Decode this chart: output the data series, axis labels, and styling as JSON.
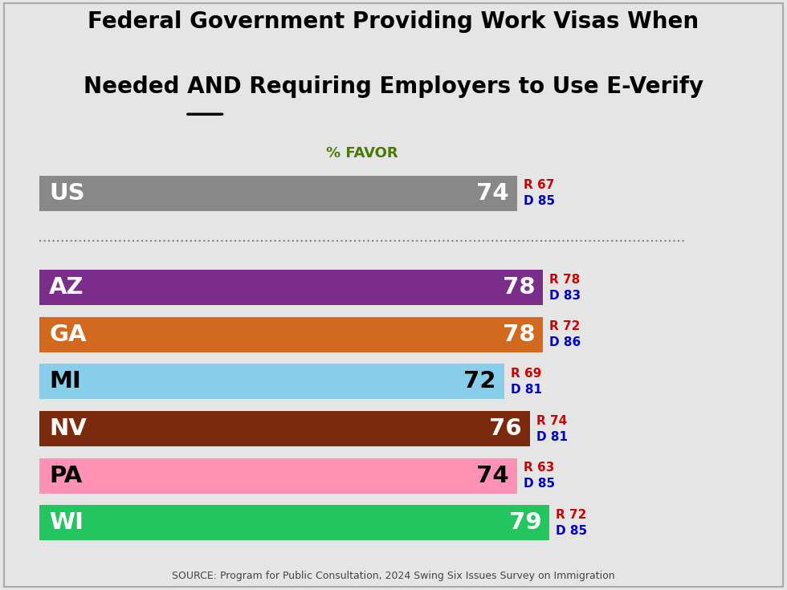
{
  "title_line1": "Federal Government Providing Work Visas When",
  "title_line2_pre": "Needed ",
  "title_line2_underline": "AND",
  "title_line2_post": " Requiring Employers to Use E-Verify",
  "favor_label": "% FAVOR",
  "source": "SOURCE: Program for Public Consultation, 2024 Swing Six Issues Survey on Immigration",
  "background_color": "#e5e5e5",
  "bars": [
    {
      "label": "US",
      "value": 74,
      "color": "#888888",
      "R": 67,
      "D": 85,
      "label_color": "#ffffff",
      "value_color": "#ffffff"
    },
    {
      "label": "AZ",
      "value": 78,
      "color": "#7B2D8B",
      "R": 78,
      "D": 83,
      "label_color": "#ffffff",
      "value_color": "#ffffff"
    },
    {
      "label": "GA",
      "value": 78,
      "color": "#D2691E",
      "R": 72,
      "D": 86,
      "label_color": "#ffffff",
      "value_color": "#ffffff"
    },
    {
      "label": "MI",
      "value": 72,
      "color": "#87CEEB",
      "R": 69,
      "D": 81,
      "label_color": "#000000",
      "value_color": "#000000"
    },
    {
      "label": "NV",
      "value": 76,
      "color": "#7B2A0E",
      "R": 74,
      "D": 81,
      "label_color": "#ffffff",
      "value_color": "#ffffff"
    },
    {
      "label": "PA",
      "value": 74,
      "color": "#FF91B4",
      "R": 63,
      "D": 85,
      "label_color": "#000000",
      "value_color": "#000000"
    },
    {
      "label": "WI",
      "value": 79,
      "color": "#22C55E",
      "R": 72,
      "D": 85,
      "label_color": "#ffffff",
      "value_color": "#ffffff"
    }
  ],
  "r_color": "#cc0000",
  "d_color": "#0000cc",
  "bar_height": 0.75
}
